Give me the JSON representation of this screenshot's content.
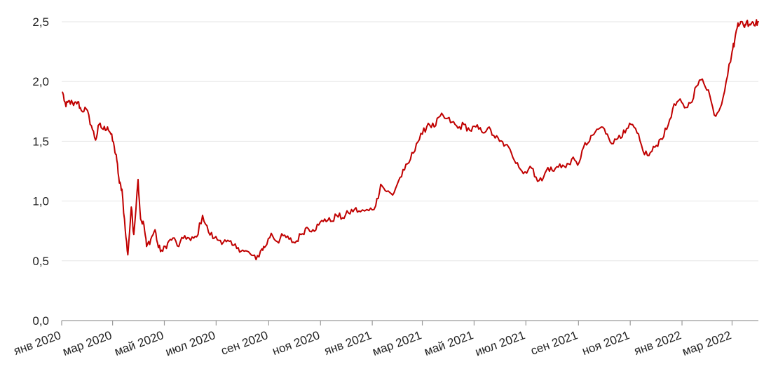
{
  "chart_data": {
    "type": "line",
    "title": "",
    "xlabel": "",
    "ylabel": "",
    "ylim": [
      0,
      2.5
    ],
    "yticks": [
      "0,0",
      "0,5",
      "1,0",
      "1,5",
      "2,0",
      "2,5"
    ],
    "xticks": [
      "янв 2020",
      "мар 2020",
      "май 2020",
      "июл 2020",
      "сен 2020",
      "ноя 2020",
      "янв 2021",
      "мар 2021",
      "май 2021",
      "июл 2021",
      "сен 2021",
      "ноя 2021",
      "янв 2022",
      "мар 2022"
    ],
    "grid": true,
    "legend": "none",
    "line_color": "#c00000",
    "series": [
      {
        "x": [
          "2020-01-02",
          "2020-01-06",
          "2020-01-10",
          "2020-01-15",
          "2020-01-20",
          "2020-01-24",
          "2020-01-30",
          "2020-02-05",
          "2020-02-10",
          "2020-02-14",
          "2020-02-19",
          "2020-02-24",
          "2020-02-28",
          "2020-03-03",
          "2020-03-06",
          "2020-03-09",
          "2020-03-12",
          "2020-03-16",
          "2020-03-19",
          "2020-03-23",
          "2020-03-26",
          "2020-03-31",
          "2020-04-03",
          "2020-04-07",
          "2020-04-10",
          "2020-04-15",
          "2020-04-20",
          "2020-04-24",
          "2020-04-29",
          "2020-05-05",
          "2020-05-11",
          "2020-05-18",
          "2020-05-25",
          "2020-06-01",
          "2020-06-08",
          "2020-06-15",
          "2020-06-22",
          "2020-06-29",
          "2020-07-06",
          "2020-07-13",
          "2020-07-20",
          "2020-07-27",
          "2020-08-03",
          "2020-08-10",
          "2020-08-17",
          "2020-08-24",
          "2020-08-28",
          "2020-09-04",
          "2020-09-11",
          "2020-09-18",
          "2020-09-25",
          "2020-10-02",
          "2020-10-09",
          "2020-10-16",
          "2020-10-23",
          "2020-10-30",
          "2020-11-06",
          "2020-11-13",
          "2020-11-20",
          "2020-11-27",
          "2020-12-04",
          "2020-12-11",
          "2020-12-18",
          "2020-12-28",
          "2021-01-05",
          "2021-01-11",
          "2021-01-18",
          "2021-01-25",
          "2021-02-01",
          "2021-02-08",
          "2021-02-15",
          "2021-02-22",
          "2021-03-01",
          "2021-03-08",
          "2021-03-15",
          "2021-03-22",
          "2021-03-29",
          "2021-04-05",
          "2021-04-12",
          "2021-04-19",
          "2021-04-26",
          "2021-05-03",
          "2021-05-10",
          "2021-05-17",
          "2021-05-24",
          "2021-05-31",
          "2021-06-07",
          "2021-06-14",
          "2021-06-21",
          "2021-06-28",
          "2021-07-06",
          "2021-07-13",
          "2021-07-20",
          "2021-07-27",
          "2021-08-03",
          "2021-08-10",
          "2021-08-17",
          "2021-08-24",
          "2021-08-31",
          "2021-09-07",
          "2021-09-14",
          "2021-09-21",
          "2021-09-28",
          "2021-10-05",
          "2021-10-12",
          "2021-10-19",
          "2021-10-26",
          "2021-11-02",
          "2021-11-09",
          "2021-11-16",
          "2021-11-23",
          "2021-11-30",
          "2021-12-07",
          "2021-12-14",
          "2021-12-21",
          "2021-12-28",
          "2022-01-04",
          "2022-01-11",
          "2022-01-18",
          "2022-01-25",
          "2022-02-01",
          "2022-02-08",
          "2022-02-15",
          "2022-02-22",
          "2022-03-01",
          "2022-03-04",
          "2022-03-08",
          "2022-03-11",
          "2022-03-15",
          "2022-03-18",
          "2022-03-22",
          "2022-03-25",
          "2022-03-29",
          "2022-04-01"
        ],
        "values": [
          1.91,
          1.79,
          1.84,
          1.8,
          1.83,
          1.76,
          1.77,
          1.63,
          1.51,
          1.64,
          1.6,
          1.62,
          1.56,
          1.45,
          1.34,
          1.15,
          1.1,
          0.75,
          0.55,
          0.95,
          0.72,
          1.18,
          0.85,
          0.8,
          0.62,
          0.68,
          0.76,
          0.61,
          0.58,
          0.65,
          0.69,
          0.62,
          0.71,
          0.67,
          0.7,
          0.88,
          0.74,
          0.69,
          0.67,
          0.66,
          0.63,
          0.61,
          0.58,
          0.56,
          0.51,
          0.6,
          0.62,
          0.73,
          0.66,
          0.71,
          0.68,
          0.65,
          0.72,
          0.78,
          0.76,
          0.8,
          0.85,
          0.83,
          0.88,
          0.86,
          0.9,
          0.93,
          0.91,
          0.92,
          0.96,
          1.14,
          1.08,
          1.05,
          1.17,
          1.26,
          1.35,
          1.48,
          1.56,
          1.65,
          1.62,
          1.71,
          1.69,
          1.66,
          1.61,
          1.64,
          1.59,
          1.62,
          1.58,
          1.61,
          1.55,
          1.5,
          1.47,
          1.4,
          1.32,
          1.23,
          1.29,
          1.2,
          1.17,
          1.28,
          1.25,
          1.31,
          1.28,
          1.35,
          1.3,
          1.45,
          1.5,
          1.58,
          1.62,
          1.56,
          1.48,
          1.55,
          1.57,
          1.64,
          1.57,
          1.42,
          1.38,
          1.45,
          1.52,
          1.6,
          1.77,
          1.84,
          1.78,
          1.82,
          1.96,
          2.02,
          1.93,
          1.72,
          1.78,
          2.0,
          2.25,
          2.34,
          2.49,
          2.5,
          2.46,
          2.5,
          2.48,
          2.5,
          2.49,
          2.5
        ]
      }
    ]
  }
}
